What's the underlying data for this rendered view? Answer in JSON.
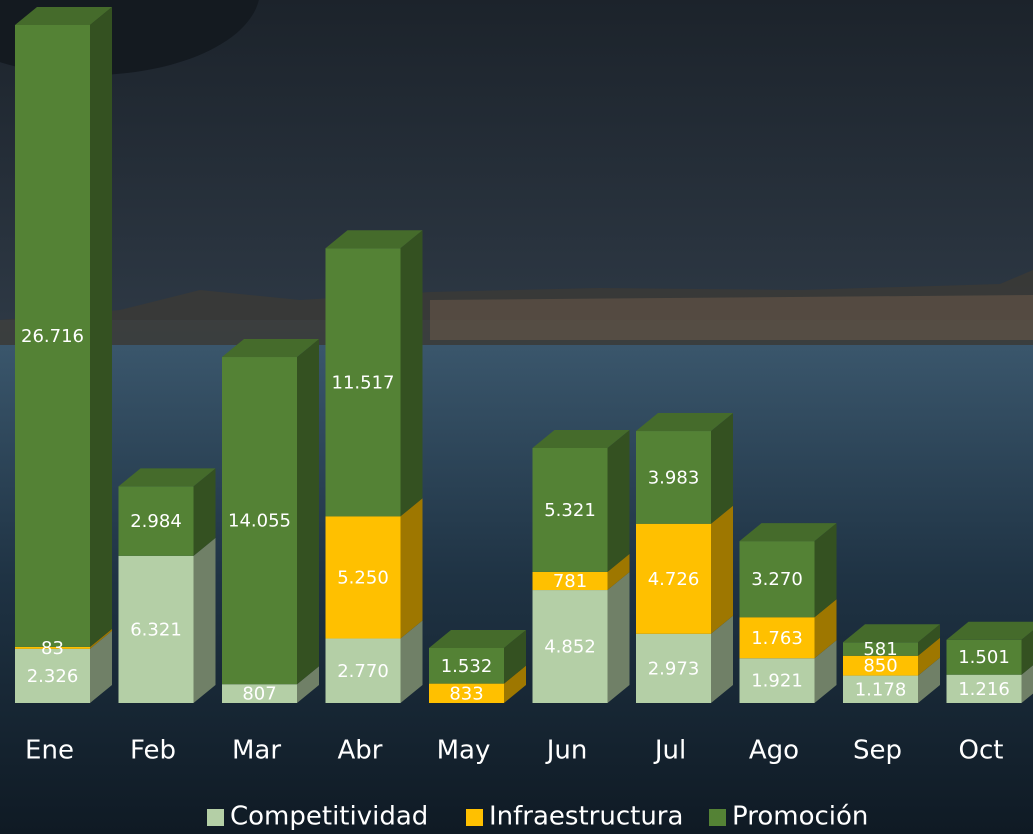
{
  "chart_data": {
    "type": "bar3d_stacked",
    "categories": [
      "Ene",
      "Feb",
      "Mar",
      "Abr",
      "May",
      "Jun",
      "Jul",
      "Ago",
      "Sep",
      "Oct"
    ],
    "series": [
      {
        "name": "Competitividad",
        "color": "#b4cfa6",
        "values": [
          2326,
          6321,
          807,
          2770,
          null,
          4852,
          2973,
          1921,
          1178,
          1216
        ],
        "value_labels": [
          "2.326",
          "6.321",
          "807",
          "2.770",
          null,
          "4.852",
          "2.973",
          "1.921",
          "1.178",
          "1.216"
        ]
      },
      {
        "name": "Infraestructura",
        "color": "#ffc000",
        "values": [
          83,
          null,
          null,
          5250,
          833,
          781,
          4726,
          1763,
          850,
          null
        ],
        "value_labels": [
          "83",
          null,
          null,
          "5.250",
          "833",
          "781",
          "4.726",
          "1.763",
          "850",
          null
        ]
      },
      {
        "name": "Promoción",
        "color": "#548235",
        "values": [
          26716,
          2984,
          14055,
          11517,
          1532,
          5321,
          3983,
          3270,
          581,
          1501
        ],
        "value_labels": [
          "26.716",
          "2.984",
          "14.055",
          "11.517",
          "1.532",
          "5.321",
          "3.983",
          "3.270",
          "581",
          "1.501"
        ]
      }
    ]
  }
}
